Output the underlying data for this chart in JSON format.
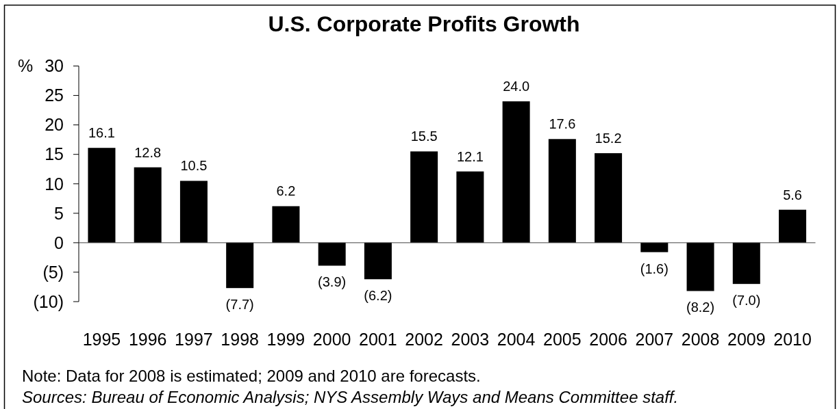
{
  "chart_data": {
    "type": "bar",
    "title": "U.S. Corporate Profits Growth",
    "ylabel": "%",
    "categories": [
      "1995",
      "1996",
      "1997",
      "1998",
      "1999",
      "2000",
      "2001",
      "2002",
      "2003",
      "2004",
      "2005",
      "2006",
      "2007",
      "2008",
      "2009",
      "2010"
    ],
    "values": [
      16.1,
      12.8,
      10.5,
      -7.7,
      6.2,
      -3.9,
      -6.2,
      15.5,
      12.1,
      24.0,
      17.6,
      15.2,
      -1.6,
      -8.2,
      -7.0,
      5.6
    ],
    "value_labels": [
      "16.1",
      "12.8",
      "10.5",
      "(7.7)",
      "6.2",
      "(3.9)",
      "(6.2)",
      "15.5",
      "12.1",
      "24.0",
      "17.6",
      "15.2",
      "(1.6)",
      "(8.2)",
      "(7.0)",
      "5.6"
    ],
    "color": "#000000",
    "ylim": [
      -10,
      30
    ],
    "yticks": [
      {
        "value": -10,
        "label": "(10)"
      },
      {
        "value": -5,
        "label": "(5)"
      },
      0,
      5,
      10,
      15,
      20,
      25,
      30
    ],
    "annotations": [
      "Note: Data for 2008 is estimated; 2009 and 2010 are forecasts.",
      "Sources: Bureau of Economic Analysis; NYS Assembly Ways and Means Committee staff."
    ]
  }
}
